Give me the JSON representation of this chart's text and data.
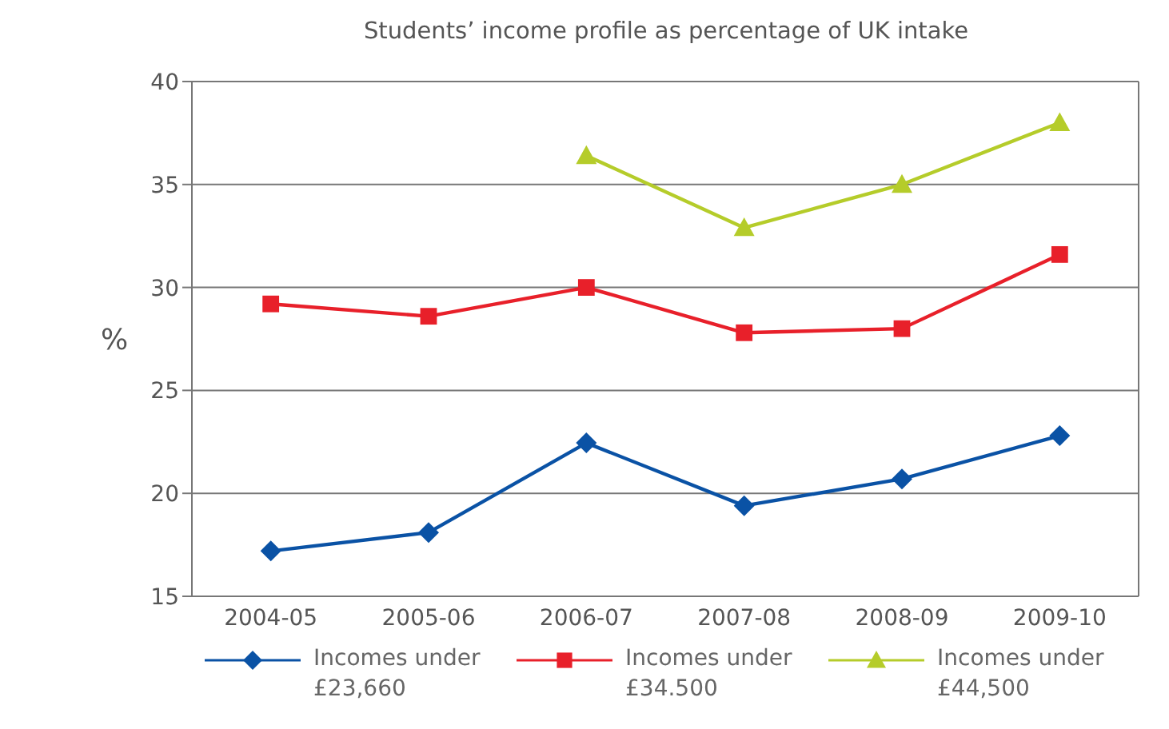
{
  "chart_data": {
    "type": "line",
    "title": "Students’ income profile as percentage of UK intake",
    "ylabel": "%",
    "categories": [
      "2004-05",
      "2005-06",
      "2006-07",
      "2007-08",
      "2008-09",
      "2009-10"
    ],
    "series": [
      {
        "name": "Incomes under £23,660",
        "color": "#0a52a5",
        "marker": "diamond",
        "values": [
          17.2,
          18.1,
          22.45,
          19.4,
          20.7,
          22.8
        ]
      },
      {
        "name": "Incomes under £34.500",
        "color": "#e8202a",
        "marker": "square",
        "values": [
          29.2,
          28.6,
          30.0,
          27.8,
          28.0,
          31.6
        ]
      },
      {
        "name": "Incomes under £44,500",
        "color": "#b5cc2a",
        "marker": "triangle",
        "values": [
          null,
          null,
          36.4,
          32.9,
          35.0,
          38.0
        ]
      }
    ],
    "ylim": [
      15,
      40
    ],
    "yticks": [
      15,
      20,
      25,
      30,
      35,
      40
    ],
    "grid": "y",
    "legend": "bottom"
  }
}
